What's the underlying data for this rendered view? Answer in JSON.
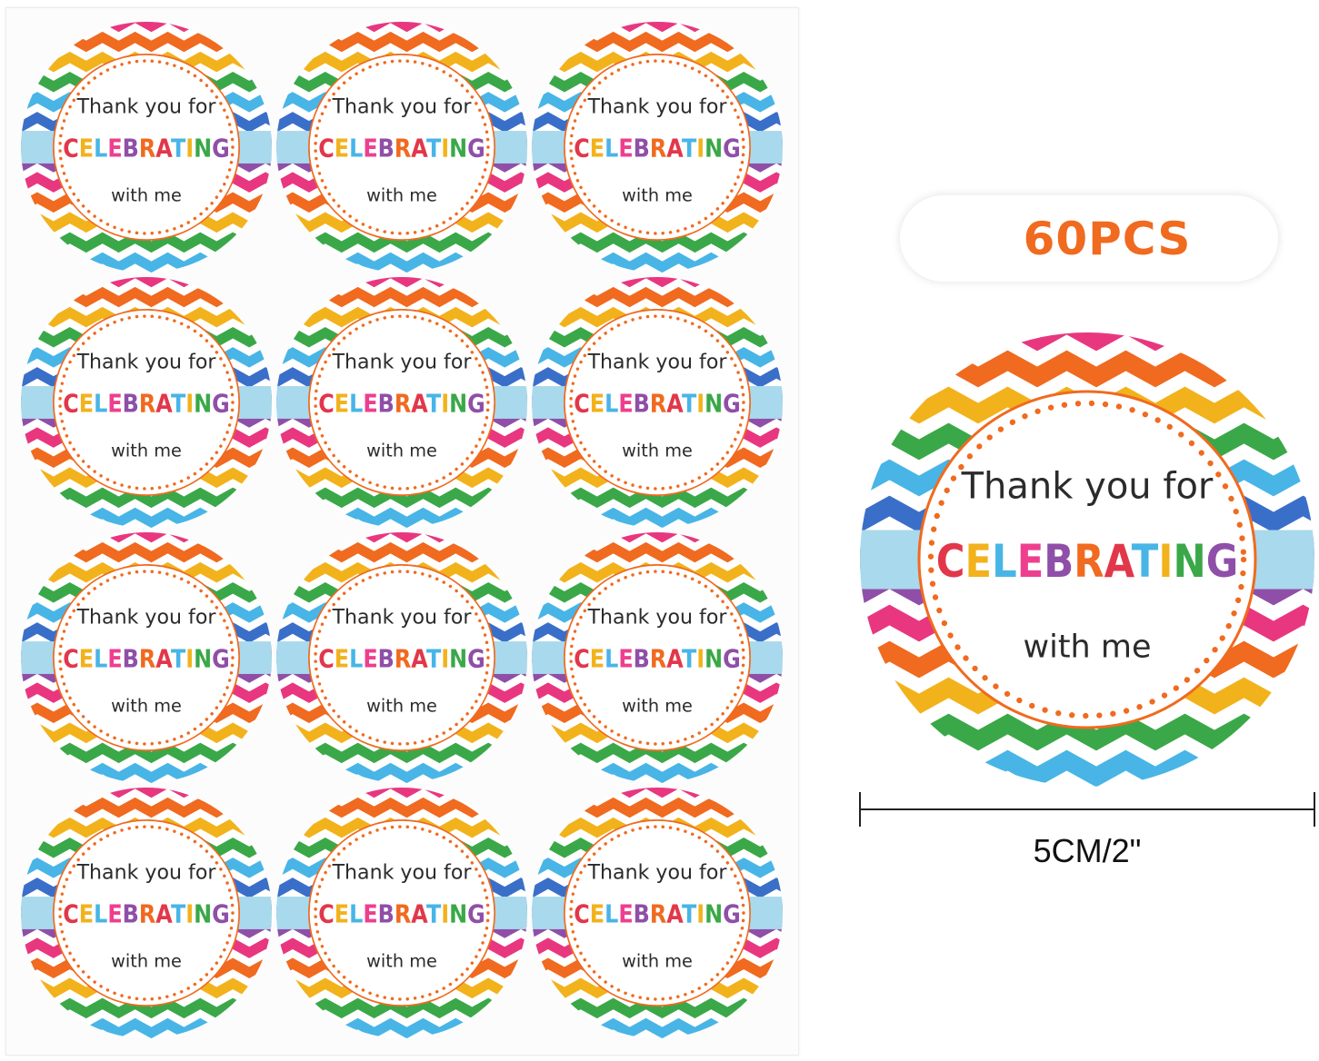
{
  "sticker": {
    "line1": "Thank you for",
    "line2_letters": [
      "C",
      "E",
      "L",
      "E",
      "B",
      "R",
      "A",
      "T",
      "I",
      "N",
      "G"
    ],
    "line2_colors": [
      "#e2374a",
      "#f2b21c",
      "#48b5e6",
      "#ee3f8f",
      "#8f4fa8",
      "#f06a1f",
      "#e2374a",
      "#48b5e6",
      "#f2b21c",
      "#3aa848",
      "#8f4fa8"
    ],
    "line3": "with me"
  },
  "chevron_colors": [
    "#8f4fa8",
    "#e8377f",
    "#f06a1f",
    "#f2b21c",
    "#3aa848",
    "#48b5e6",
    "#3a6fc9",
    "#7a4fb0"
  ],
  "ring_color": "#f06a1f",
  "band_color": "#a9d9ec",
  "badge": {
    "text": "60PCS"
  },
  "measure": {
    "label": "5CM/2\""
  }
}
